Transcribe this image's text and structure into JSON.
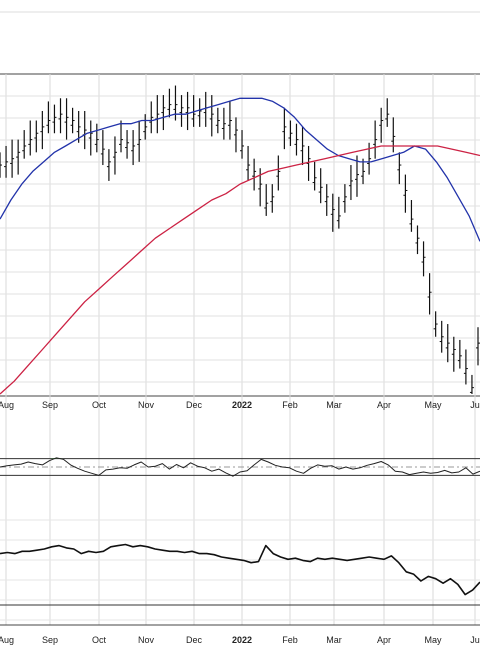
{
  "chart_data": {
    "type": "line",
    "panels": [
      "price",
      "rsi",
      "relative_strength"
    ],
    "x_tick_labels": [
      "Aug",
      "Sep",
      "Oct",
      "Nov",
      "Dec",
      "2022",
      "Feb",
      "Mar",
      "Apr",
      "May",
      "Ju"
    ],
    "price": {
      "style": "ohlc_bars",
      "ylim": [
        0,
        100
      ],
      "closes": [
        72,
        73,
        74,
        76,
        78,
        80,
        82,
        84,
        86,
        87,
        88,
        87,
        86,
        84,
        83,
        82,
        80,
        77,
        73,
        76,
        80,
        79,
        78,
        80,
        84,
        87,
        88,
        90,
        91,
        91,
        90,
        90,
        88,
        89,
        90,
        88,
        86,
        85,
        86,
        83,
        78,
        72,
        70,
        66,
        60,
        62,
        70,
        84,
        82,
        80,
        78,
        74,
        68,
        65,
        62,
        58,
        56,
        62,
        67,
        69,
        70,
        74,
        80,
        86,
        88,
        81,
        72,
        64,
        55,
        49,
        43,
        32,
        22,
        18,
        16,
        14,
        12,
        8,
        2,
        16
      ],
      "ma_short": {
        "name": "blue",
        "color": "#2233aa",
        "values": [
          55,
          61,
          66,
          70,
          73,
          76,
          78,
          80,
          82,
          83,
          84,
          85,
          85,
          86,
          86,
          87,
          88,
          88,
          89,
          90,
          91,
          92,
          93,
          93,
          93,
          92,
          90,
          87,
          83,
          80,
          77,
          75,
          74,
          73,
          73,
          74,
          75,
          76,
          78,
          77,
          73,
          68,
          62,
          56,
          48
        ]
      },
      "ma_long": {
        "name": "red",
        "color": "#cc2244",
        "values": [
          0,
          4,
          9,
          14,
          19,
          24,
          29,
          33,
          37,
          41,
          45,
          49,
          52,
          55,
          58,
          61,
          63,
          66,
          68,
          70,
          71,
          72,
          73,
          74,
          75,
          76,
          77,
          78,
          78,
          78,
          78,
          78,
          77,
          76,
          75
        ]
      }
    },
    "rsi": {
      "overbought": 70,
      "oversold": 30,
      "ylim": [
        0,
        100
      ],
      "overbought_fill_color": "#3a8a3a",
      "values": [
        50,
        53,
        55,
        57,
        62,
        58,
        55,
        65,
        72,
        68,
        55,
        47,
        40,
        35,
        30,
        43,
        45,
        48,
        47,
        55,
        62,
        50,
        52,
        58,
        45,
        56,
        48,
        60,
        52,
        48,
        40,
        45,
        36,
        28,
        38,
        41,
        55,
        68,
        62,
        54,
        50,
        48,
        40,
        35,
        47,
        55,
        52,
        53,
        45,
        50,
        45,
        48,
        54,
        58,
        63,
        55,
        40,
        38,
        32,
        35,
        38,
        35,
        37,
        42,
        36,
        38,
        48,
        33,
        40
      ]
    },
    "relative_strength": {
      "ylim": [
        0,
        100
      ],
      "values": [
        60,
        61,
        60,
        62,
        62,
        63,
        64,
        66,
        67,
        65,
        64,
        60,
        62,
        61,
        62,
        66,
        67,
        68,
        66,
        67,
        66,
        64,
        63,
        62,
        62,
        61,
        62,
        60,
        60,
        59,
        57,
        56,
        55,
        54,
        52,
        53,
        67,
        60,
        57,
        55,
        56,
        54,
        53,
        56,
        55,
        56,
        55,
        54,
        55,
        56,
        57,
        56,
        55,
        58,
        52,
        44,
        42,
        36,
        40,
        38,
        34,
        38,
        33,
        24,
        28,
        35
      ]
    }
  }
}
